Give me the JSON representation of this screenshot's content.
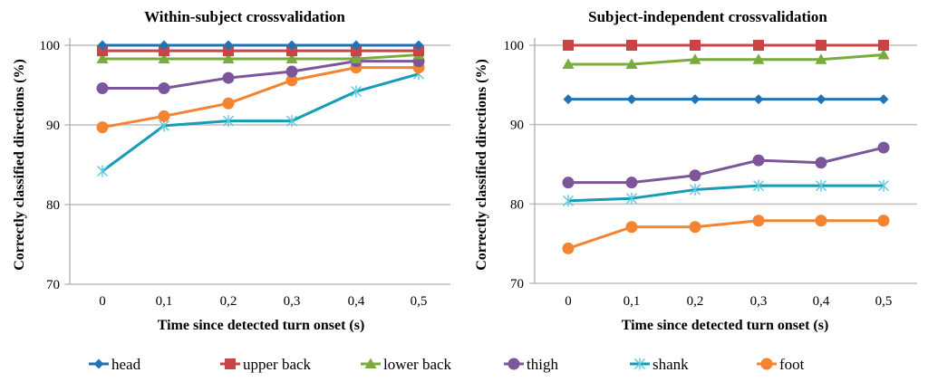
{
  "legend": {
    "placement": "bottom",
    "items": [
      {
        "name": "head",
        "color": "#2272b4",
        "marker": "diamond"
      },
      {
        "name": "upper back",
        "color": "#c94444",
        "marker": "square"
      },
      {
        "name": "lower back",
        "color": "#7aac3d",
        "marker": "triangle"
      },
      {
        "name": "thigh",
        "color": "#7d559a",
        "marker": "circle"
      },
      {
        "name": "shank",
        "color": "#169cb5",
        "marker": "star"
      },
      {
        "name": "foot",
        "color": "#f28432",
        "marker": "circle"
      }
    ]
  },
  "chart_data": [
    {
      "type": "line",
      "title": "Within-subject crossvalidation",
      "xlabel": "Time since detected turn onset (s)",
      "ylabel": "Correctly classified  directions (%)",
      "categories": [
        "0",
        "0,1",
        "0,2",
        "0,3",
        "0,4",
        "0,5"
      ],
      "ylim": [
        70,
        100
      ],
      "yticks": [
        70,
        80,
        90,
        100
      ],
      "grid": true,
      "series": [
        {
          "name": "head",
          "values": [
            100,
            100,
            100,
            100,
            100,
            100
          ]
        },
        {
          "name": "upper back",
          "values": [
            99.3,
            99.3,
            99.3,
            99.3,
            99.3,
            99.3
          ]
        },
        {
          "name": "lower back",
          "values": [
            98.3,
            98.3,
            98.3,
            98.3,
            98.3,
            98.8
          ]
        },
        {
          "name": "thigh",
          "values": [
            94.6,
            94.6,
            95.9,
            96.7,
            98.0,
            98.0
          ]
        },
        {
          "name": "shank",
          "values": [
            84.2,
            89.9,
            90.5,
            90.5,
            94.2,
            96.4
          ]
        },
        {
          "name": "foot",
          "values": [
            89.7,
            91.1,
            92.7,
            95.6,
            97.2,
            97.2
          ]
        }
      ]
    },
    {
      "type": "line",
      "title": "Subject-independent crossvalidation",
      "xlabel": "Time since detected turn onset (s)",
      "ylabel": "Correctly classified  directions (%)",
      "categories": [
        "0",
        "0,1",
        "0,2",
        "0,3",
        "0,4",
        "0,5"
      ],
      "ylim": [
        70,
        100
      ],
      "yticks": [
        70,
        80,
        90,
        100
      ],
      "grid": true,
      "series": [
        {
          "name": "head",
          "values": [
            93.2,
            93.2,
            93.2,
            93.2,
            93.2,
            93.2
          ]
        },
        {
          "name": "upper back",
          "values": [
            100,
            100,
            100,
            100,
            100,
            100
          ]
        },
        {
          "name": "lower back",
          "values": [
            97.6,
            97.6,
            98.2,
            98.2,
            98.2,
            98.8
          ]
        },
        {
          "name": "thigh",
          "values": [
            82.7,
            82.7,
            83.6,
            85.5,
            85.2,
            87.1
          ]
        },
        {
          "name": "shank",
          "values": [
            80.4,
            80.7,
            81.8,
            82.3,
            82.3,
            82.3
          ]
        },
        {
          "name": "foot",
          "values": [
            74.4,
            77.1,
            77.1,
            77.9,
            77.9,
            77.9
          ]
        }
      ]
    }
  ]
}
